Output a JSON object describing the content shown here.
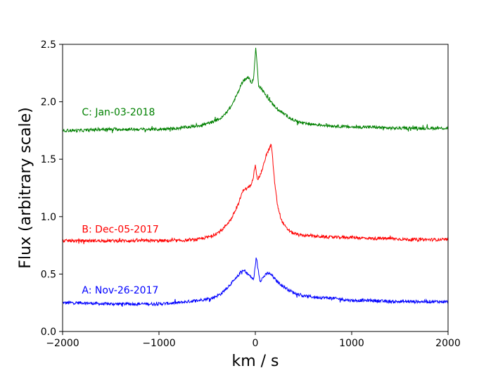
{
  "chart_data": {
    "type": "line",
    "title": "",
    "xlabel": "km / s",
    "ylabel": "Flux (arbitrary scale)",
    "xlim": [
      -2000,
      2000
    ],
    "ylim": [
      0.0,
      2.5
    ],
    "x_ticks": [
      -2000,
      -1000,
      0,
      1000,
      2000
    ],
    "x_tick_labels": [
      "−2000",
      "−1000",
      "0",
      "1000",
      "2000"
    ],
    "y_ticks": [
      0.0,
      0.5,
      1.0,
      1.5,
      2.0,
      2.5
    ],
    "y_tick_labels": [
      "0.0",
      "0.5",
      "1.0",
      "1.5",
      "2.0",
      "2.5"
    ],
    "grid": false,
    "series": [
      {
        "name": "A: Nov-26-2017",
        "color": "#0000ff",
        "label_at": [
          -1800,
          0.33
        ],
        "points": [
          [
            -2000,
            0.25
          ],
          [
            -1800,
            0.25
          ],
          [
            -1600,
            0.24
          ],
          [
            -1400,
            0.24
          ],
          [
            -1200,
            0.24
          ],
          [
            -1000,
            0.24
          ],
          [
            -800,
            0.25
          ],
          [
            -600,
            0.27
          ],
          [
            -450,
            0.29
          ],
          [
            -350,
            0.33
          ],
          [
            -250,
            0.42
          ],
          [
            -200,
            0.46
          ],
          [
            -150,
            0.52
          ],
          [
            -110,
            0.53
          ],
          [
            -80,
            0.5
          ],
          [
            -50,
            0.48
          ],
          [
            -20,
            0.45
          ],
          [
            0,
            0.56
          ],
          [
            10,
            0.65
          ],
          [
            25,
            0.56
          ],
          [
            50,
            0.44
          ],
          [
            90,
            0.48
          ],
          [
            130,
            0.51
          ],
          [
            170,
            0.49
          ],
          [
            220,
            0.44
          ],
          [
            280,
            0.4
          ],
          [
            350,
            0.36
          ],
          [
            420,
            0.33
          ],
          [
            500,
            0.31
          ],
          [
            600,
            0.3
          ],
          [
            800,
            0.29
          ],
          [
            1000,
            0.27
          ],
          [
            1200,
            0.27
          ],
          [
            1400,
            0.26
          ],
          [
            1600,
            0.26
          ],
          [
            1800,
            0.26
          ],
          [
            2000,
            0.26
          ]
        ]
      },
      {
        "name": "B: Dec-05-2017",
        "color": "#ff0000",
        "label_at": [
          -1800,
          0.86
        ],
        "points": [
          [
            -2000,
            0.79
          ],
          [
            -1800,
            0.79
          ],
          [
            -1600,
            0.79
          ],
          [
            -1400,
            0.79
          ],
          [
            -1200,
            0.79
          ],
          [
            -1000,
            0.79
          ],
          [
            -800,
            0.79
          ],
          [
            -600,
            0.8
          ],
          [
            -450,
            0.83
          ],
          [
            -350,
            0.88
          ],
          [
            -250,
            0.98
          ],
          [
            -180,
            1.1
          ],
          [
            -140,
            1.2
          ],
          [
            -120,
            1.24
          ],
          [
            -90,
            1.24
          ],
          [
            -50,
            1.27
          ],
          [
            -20,
            1.35
          ],
          [
            0,
            1.46
          ],
          [
            20,
            1.32
          ],
          [
            50,
            1.36
          ],
          [
            80,
            1.43
          ],
          [
            110,
            1.53
          ],
          [
            140,
            1.58
          ],
          [
            165,
            1.63
          ],
          [
            180,
            1.5
          ],
          [
            200,
            1.3
          ],
          [
            230,
            1.1
          ],
          [
            270,
            0.97
          ],
          [
            320,
            0.9
          ],
          [
            380,
            0.86
          ],
          [
            450,
            0.84
          ],
          [
            600,
            0.83
          ],
          [
            800,
            0.82
          ],
          [
            1000,
            0.82
          ],
          [
            1200,
            0.81
          ],
          [
            1400,
            0.81
          ],
          [
            1600,
            0.8
          ],
          [
            1800,
            0.8
          ],
          [
            2000,
            0.8
          ]
        ]
      },
      {
        "name": "C: Jan-03-2018",
        "color": "#008000",
        "label_at": [
          -1800,
          1.88
        ],
        "points": [
          [
            -2000,
            1.75
          ],
          [
            -1800,
            1.75
          ],
          [
            -1600,
            1.76
          ],
          [
            -1400,
            1.76
          ],
          [
            -1200,
            1.76
          ],
          [
            -1000,
            1.76
          ],
          [
            -800,
            1.77
          ],
          [
            -600,
            1.79
          ],
          [
            -450,
            1.82
          ],
          [
            -350,
            1.86
          ],
          [
            -250,
            1.96
          ],
          [
            -180,
            2.08
          ],
          [
            -130,
            2.18
          ],
          [
            -100,
            2.2
          ],
          [
            -70,
            2.21
          ],
          [
            -40,
            2.16
          ],
          [
            -20,
            2.2
          ],
          [
            -5,
            2.35
          ],
          [
            5,
            2.48
          ],
          [
            15,
            2.35
          ],
          [
            35,
            2.14
          ],
          [
            60,
            2.12
          ],
          [
            90,
            2.08
          ],
          [
            130,
            2.03
          ],
          [
            180,
            1.98
          ],
          [
            240,
            1.93
          ],
          [
            320,
            1.88
          ],
          [
            400,
            1.84
          ],
          [
            500,
            1.81
          ],
          [
            650,
            1.8
          ],
          [
            800,
            1.79
          ],
          [
            1000,
            1.78
          ],
          [
            1200,
            1.78
          ],
          [
            1400,
            1.77
          ],
          [
            1600,
            1.77
          ],
          [
            1800,
            1.77
          ],
          [
            2000,
            1.77
          ]
        ]
      }
    ]
  }
}
